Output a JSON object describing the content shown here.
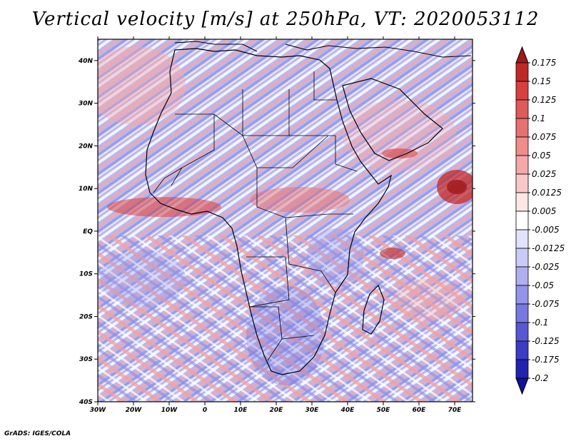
{
  "title": "Vertical velocity [m/s] at 250hPa, VT: 2020053112",
  "credit": "GrADS: IGES/COLA",
  "map": {
    "type": "shaded-contour-map",
    "field": "vertical velocity",
    "units": "m/s",
    "level": "250hPa",
    "valid_time": "2020053112",
    "lon_range": [
      -30,
      75
    ],
    "lat_range": [
      -40,
      45
    ],
    "lon_ticks": [
      {
        "value": -30,
        "label": "30W"
      },
      {
        "value": -20,
        "label": "20W"
      },
      {
        "value": -10,
        "label": "10W"
      },
      {
        "value": 0,
        "label": "0"
      },
      {
        "value": 10,
        "label": "10E"
      },
      {
        "value": 20,
        "label": "20E"
      },
      {
        "value": 30,
        "label": "30E"
      },
      {
        "value": 40,
        "label": "40E"
      },
      {
        "value": 50,
        "label": "50E"
      },
      {
        "value": 60,
        "label": "60E"
      },
      {
        "value": 70,
        "label": "70E"
      }
    ],
    "lat_ticks": [
      {
        "value": 40,
        "label": "40N"
      },
      {
        "value": 30,
        "label": "30N"
      },
      {
        "value": 20,
        "label": "20N"
      },
      {
        "value": 10,
        "label": "10N"
      },
      {
        "value": 0,
        "label": "EQ"
      },
      {
        "value": -10,
        "label": "10S"
      },
      {
        "value": -20,
        "label": "20S"
      },
      {
        "value": -30,
        "label": "30S"
      },
      {
        "value": -40,
        "label": "40S"
      }
    ]
  },
  "colorbar": {
    "levels": [
      "0.175",
      "0.15",
      "0.125",
      "0.1",
      "0.075",
      "0.05",
      "0.025",
      "0.0125",
      "0.005",
      "-0.005",
      "-0.0125",
      "-0.025",
      "-0.05",
      "-0.075",
      "-0.1",
      "-0.125",
      "-0.175",
      "-0.2"
    ],
    "colors": [
      "#a01818",
      "#c02828",
      "#d84040",
      "#e05a5a",
      "#e87070",
      "#ef8c8c",
      "#f4a8a8",
      "#f8c8c8",
      "#fce6e6",
      "#ffffff",
      "#e2e2fc",
      "#cacaf6",
      "#aeaef0",
      "#9494e8",
      "#7878e0",
      "#5858d4",
      "#3c3cc4",
      "#2222b0",
      "#10109a"
    ]
  }
}
